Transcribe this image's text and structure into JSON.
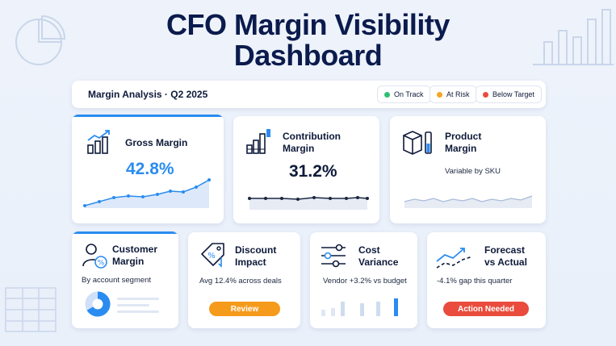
{
  "page": {
    "title_line1": "CFO Margin Visibility",
    "title_line2": "Dashboard"
  },
  "header": {
    "label": "Margin Analysis · Q2 2025",
    "legend": [
      {
        "label": "On Track",
        "color": "#2fbf71"
      },
      {
        "label": "At Risk",
        "color": "#f5a623"
      },
      {
        "label": "Below Target",
        "color": "#e94b3c"
      }
    ]
  },
  "cards": {
    "gross": {
      "title": "Gross Margin",
      "value": "42.8%",
      "icon": "bar-growth-icon",
      "color": "#2a8cf0"
    },
    "contribution": {
      "title1": "Contribution",
      "title2": "Margin",
      "value": "31.2%",
      "icon": "stacked-bars-icon"
    },
    "product": {
      "title1": "Product",
      "title2": "Margin",
      "subtitle": "Variable by SKU",
      "icon": "boxes-icon"
    },
    "customer": {
      "title1": "Customer",
      "title2": "Margin",
      "subtitle": "By account segment",
      "icon": "user-percent-icon"
    },
    "discount": {
      "title1": "Discount",
      "title2": "Impact",
      "subtitle": "Avg 12.4% across deals",
      "button": "Review",
      "button_color": "#f59a1b",
      "icon": "tag-percent-icon"
    },
    "cost": {
      "title1": "Cost",
      "title2": "Variance",
      "subtitle": "Vendor +3.2% vs budget",
      "icon": "sliders-icon"
    },
    "forecast": {
      "title1": "Forecast",
      "title2": "vs Actual",
      "subtitle": "-4.1% gap this quarter",
      "button": "Action Needed",
      "button_color": "#e94b3c",
      "icon": "trend-compare-icon"
    }
  }
}
